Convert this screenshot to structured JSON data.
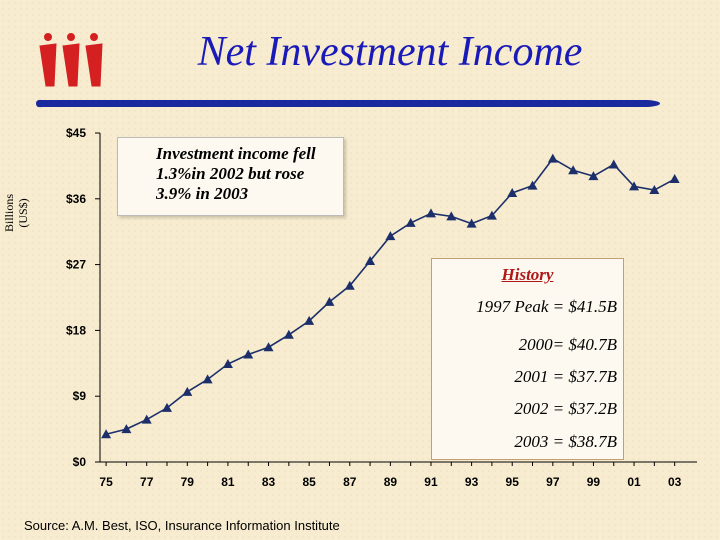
{
  "title": "Net Investment Income",
  "source": "Source:  A.M. Best, ISO, Insurance Information Institute",
  "callout": {
    "text": "Investment income fell 1.3%in 2002 but rose 3.9% in 2003"
  },
  "history": {
    "title": "History",
    "lines": [
      "1997 Peak = $41.5B",
      "2000= $40.7B",
      "2001 = $37.7B",
      "2002 = $37.2B",
      "2003 = $38.7B"
    ]
  },
  "colors": {
    "title": "#1a1ab8",
    "line": "#1c2f6b",
    "rule": "#1a2a9e",
    "logo": "#d42020",
    "history_title": "#b01818"
  },
  "chart_data": {
    "type": "line",
    "title": "Net Investment Income",
    "ylabel": "Billions (US$)",
    "xlabel": "",
    "ylim": [
      0,
      45
    ],
    "yticks": [
      0,
      9,
      18,
      27,
      36,
      45
    ],
    "ytick_labels": [
      "$0",
      "$9",
      "$18",
      "$27",
      "$36",
      "$45"
    ],
    "xtick_labels": [
      "75",
      "77",
      "79",
      "81",
      "83",
      "85",
      "87",
      "89",
      "91",
      "93",
      "95",
      "97",
      "99",
      "01",
      "03"
    ],
    "x": [
      1975,
      1976,
      1977,
      1978,
      1979,
      1980,
      1981,
      1982,
      1983,
      1984,
      1985,
      1986,
      1987,
      1988,
      1989,
      1990,
      1991,
      1992,
      1993,
      1994,
      1995,
      1996,
      1997,
      1998,
      1999,
      2000,
      2001,
      2002,
      2003
    ],
    "series": [
      {
        "values": [
          3.8,
          4.5,
          5.8,
          7.4,
          9.6,
          11.3,
          13.4,
          14.7,
          15.7,
          17.4,
          19.3,
          21.9,
          24.1,
          27.5,
          30.9,
          32.7,
          34.0,
          33.6,
          32.6,
          33.7,
          36.8,
          37.8,
          41.5,
          39.9,
          39.1,
          40.7,
          37.7,
          37.2,
          38.7
        ]
      }
    ],
    "grid": false,
    "legend": "none"
  }
}
